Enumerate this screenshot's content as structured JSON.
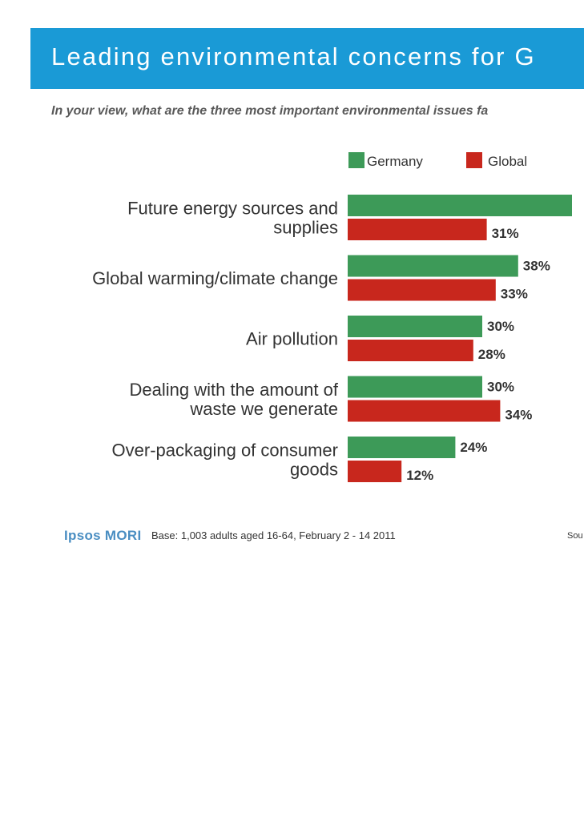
{
  "header": {
    "title": "Leading environmental concerns for G",
    "question": "In your view, what are the three most important environmental issues fa"
  },
  "colors": {
    "germany": "#3d9a58",
    "global": "#c8271d",
    "banner": "#1a9ad6"
  },
  "chart_data": {
    "type": "bar",
    "orientation": "horizontal",
    "title": "Leading environmental concerns for G",
    "categories": [
      [
        "Future energy sources and",
        "supplies"
      ],
      [
        "Global warming/climate change"
      ],
      [
        "Air pollution"
      ],
      [
        "Dealing with the amount of",
        "waste we generate"
      ],
      [
        "Over-packaging of consumer",
        "goods"
      ]
    ],
    "series": [
      {
        "name": "Germany",
        "values": [
          50,
          38,
          30,
          30,
          24
        ],
        "labels": [
          "",
          "38%",
          "30%",
          "30%",
          "24%"
        ]
      },
      {
        "name": "Global",
        "values": [
          31,
          33,
          28,
          34,
          12
        ],
        "labels": [
          "31%",
          "33%",
          "28%",
          "34%",
          "12%"
        ]
      }
    ],
    "xlim": [
      0,
      50
    ],
    "legend_position": "top-right"
  },
  "footer": {
    "logo": "Ipsos MORI",
    "base": "Base: 1,003 adults aged 16-64, February 2 - 14 2011",
    "source": "Sou"
  }
}
